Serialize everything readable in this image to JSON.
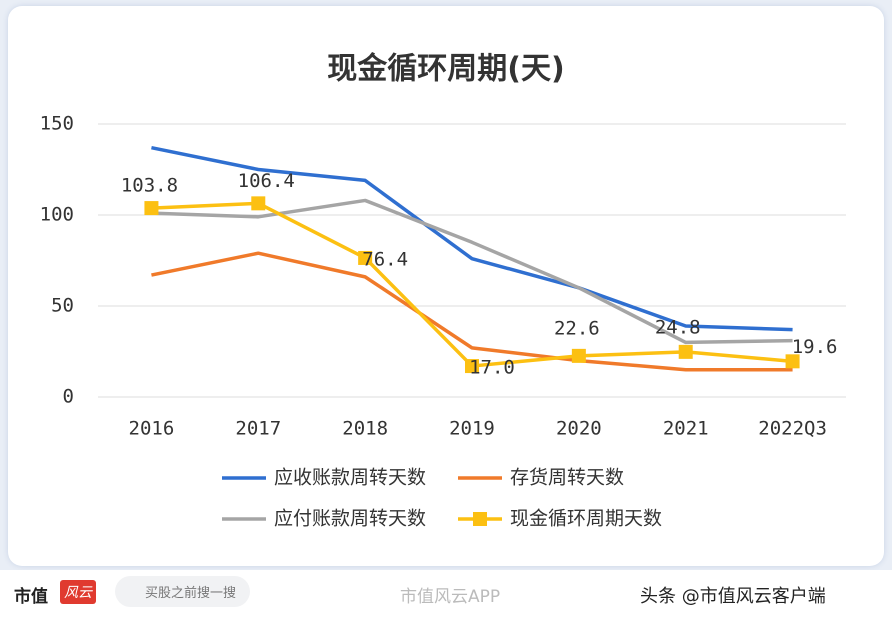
{
  "chart_data": {
    "type": "line",
    "title": "现金循环周期(天)",
    "categories": [
      "2016",
      "2017",
      "2018",
      "2019",
      "2020",
      "2021",
      "2022Q3"
    ],
    "ylim": [
      0,
      150
    ],
    "yticks": [
      0,
      50,
      100,
      150
    ],
    "grid": true,
    "series": [
      {
        "name": "应收账款周转天数",
        "color": "#2f6fd0",
        "values": [
          137,
          125,
          119,
          76,
          60,
          39,
          37
        ]
      },
      {
        "name": "存货周转天数",
        "color": "#f07a2a",
        "values": [
          67,
          79,
          66,
          27,
          20,
          15,
          15
        ]
      },
      {
        "name": "应付账款周转天数",
        "color": "#a5a5a5",
        "values": [
          101,
          99,
          108,
          85,
          60,
          30,
          31
        ]
      },
      {
        "name": "现金循环周期天数",
        "color": "#fcc012",
        "values": [
          103.8,
          106.4,
          76.4,
          17.0,
          22.6,
          24.8,
          19.6
        ],
        "value_labels": [
          "103.8",
          "106.4",
          "76.4",
          "17.0",
          "22.6",
          "24.8",
          "19.6"
        ],
        "markers": true
      }
    ]
  },
  "footer": {
    "brand": "市值",
    "logo": "风云",
    "search": "买股之前搜一搜",
    "app": "市值风云APP",
    "credit": "头条 @市值风云客户端"
  }
}
